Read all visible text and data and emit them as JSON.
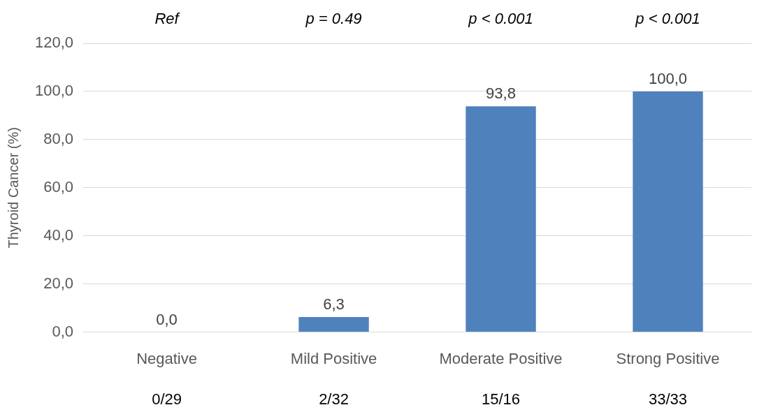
{
  "chart_data": {
    "type": "bar",
    "ylabel": "Thyroid Cancer (%)",
    "categories": [
      "Negative",
      "Mild Positive",
      "Moderate Positive",
      "Strong Positive"
    ],
    "values": [
      0,
      6.3,
      93.8,
      100
    ],
    "color": "#4f81bd",
    "value_labels": [
      "0,0",
      "6,3",
      "93,8",
      "100,0"
    ],
    "ylim": [
      0,
      120
    ],
    "yticks": [
      {
        "value": 0,
        "label": "0,0"
      },
      {
        "value": 20,
        "label": "20,0"
      },
      {
        "value": 40,
        "label": "40,0"
      },
      {
        "value": 60,
        "label": "60,0"
      },
      {
        "value": 80,
        "label": "80,0"
      },
      {
        "value": 100,
        "label": "100,0"
      },
      {
        "value": 120,
        "label": "120,0"
      }
    ],
    "grid": "y",
    "legend": false,
    "annotations": [
      "Ref",
      "p = 0.49",
      "p < 0.001",
      "p < 0.001",
      "0/29",
      "2/32",
      "15/16",
      "33/33"
    ]
  }
}
